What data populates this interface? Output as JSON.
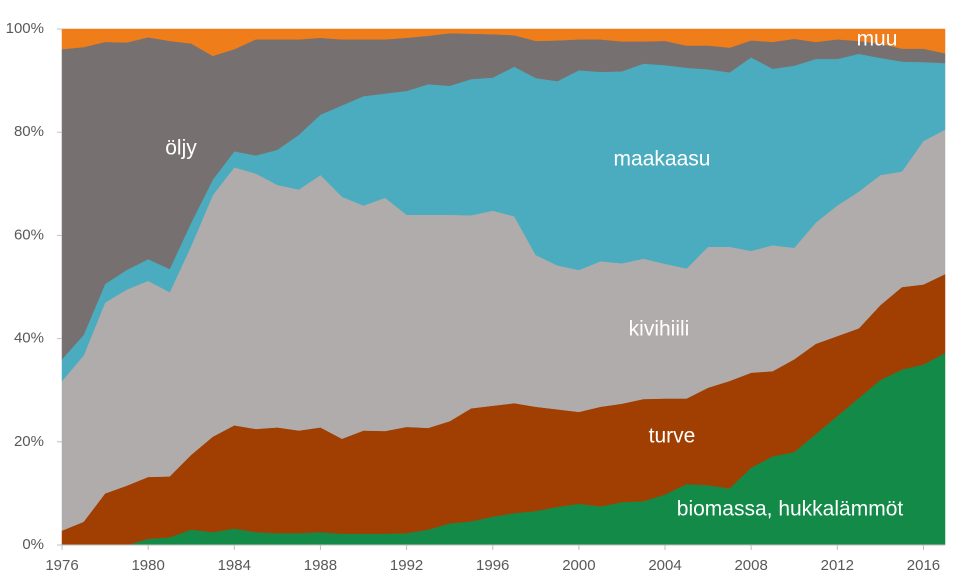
{
  "chart_data": {
    "type": "stacked_area",
    "x": [
      1976,
      1977,
      1978,
      1979,
      1980,
      1981,
      1982,
      1983,
      1984,
      1985,
      1986,
      1987,
      1988,
      1989,
      1990,
      1991,
      1992,
      1993,
      1994,
      1995,
      1996,
      1997,
      1998,
      1999,
      2000,
      2001,
      2002,
      2003,
      2004,
      2005,
      2006,
      2007,
      2008,
      2009,
      2010,
      2011,
      2012,
      2013,
      2014,
      2015,
      2016,
      2017
    ],
    "xlim": [
      1976,
      2017
    ],
    "xticks": [
      1976,
      1980,
      1984,
      1988,
      1992,
      1996,
      2000,
      2004,
      2008,
      2012,
      2016
    ],
    "ylim": [
      0,
      100
    ],
    "yticks": [
      {
        "value": 0,
        "label": "0%"
      },
      {
        "value": 20,
        "label": "20%"
      },
      {
        "value": 40,
        "label": "40%"
      },
      {
        "value": 60,
        "label": "60%"
      },
      {
        "value": 80,
        "label": "80%"
      },
      {
        "value": 100,
        "label": "100%"
      }
    ],
    "grid": false,
    "series": [
      {
        "name": "biomassa, hukkalämmöt",
        "color": "#138a47",
        "values": [
          0,
          0,
          0,
          0,
          1.2,
          1.5,
          3,
          2.5,
          3.2,
          2.5,
          2.3,
          2.3,
          2.5,
          2.2,
          2.2,
          2.2,
          2.3,
          3,
          4.2,
          4.6,
          5.5,
          6.2,
          6.6,
          7.4,
          8,
          7.5,
          8.3,
          8.5,
          9.8,
          11.8,
          11.6,
          11,
          15,
          17.2,
          18,
          21.5,
          25,
          28.5,
          32,
          34,
          35,
          37.2
        ]
      },
      {
        "name": "turve",
        "color": "#a13f02",
        "values": [
          2.8,
          4.5,
          10,
          11.5,
          12,
          11.8,
          14.5,
          18.5,
          20,
          20,
          20.5,
          19.9,
          20.3,
          18.4,
          20,
          19.9,
          20.6,
          19.7,
          19.8,
          21.9,
          21.5,
          21.3,
          20.2,
          18.9,
          17.8,
          19.3,
          19.1,
          19.8,
          18.6,
          16.6,
          18.9,
          20.8,
          18.4,
          16.5,
          18,
          17.5,
          15.5,
          13.5,
          14.5,
          16,
          15.5,
          15.3
        ]
      },
      {
        "name": "kivihiili",
        "color": "#b0acab",
        "values": [
          29,
          32.2,
          37,
          38,
          38,
          35.7,
          40.5,
          46.8,
          50,
          49.5,
          47,
          46.7,
          48.9,
          46.9,
          43.6,
          45.2,
          41.1,
          41.3,
          40,
          37.4,
          37.8,
          36.2,
          29.4,
          27.9,
          27.5,
          28.2,
          27.2,
          27.2,
          26.1,
          25.2,
          27.3,
          26,
          23.6,
          24.4,
          21.6,
          23.5,
          25.3,
          26.5,
          25.2,
          22.4,
          27.8,
          28
        ]
      },
      {
        "name": "maakaasu",
        "color": "#4bacbf",
        "values": [
          4.2,
          4,
          3.6,
          3.8,
          4.2,
          4.5,
          4.5,
          3,
          3.1,
          3.5,
          6.8,
          10.6,
          11.7,
          17.7,
          21.2,
          20.2,
          24,
          25.3,
          25,
          26.4,
          25.8,
          29,
          34.3,
          35.7,
          38.7,
          36.7,
          37.2,
          37.8,
          38.5,
          38.9,
          34.4,
          33.8,
          37.5,
          34.2,
          35.3,
          31.7,
          28.4,
          26.7,
          22.7,
          21.3,
          15.3,
          12.9
        ]
      },
      {
        "name": "öljy",
        "color": "#767170",
        "values": [
          60.1,
          55.8,
          46.9,
          44.1,
          43,
          44.2,
          34.7,
          24,
          19.8,
          22.5,
          21.4,
          18.5,
          14.9,
          12.8,
          11,
          10.5,
          10.3,
          9.4,
          10.2,
          8.8,
          8.4,
          6.1,
          7.2,
          7.9,
          6,
          6.3,
          5.8,
          4.3,
          4.7,
          4.3,
          4.6,
          4.8,
          3.3,
          5.2,
          5.2,
          3.3,
          3.8,
          2.5,
          2.8,
          2.5,
          2.6,
          1.9
        ]
      },
      {
        "name": "muu",
        "color": "#ee7d1a",
        "values": [
          3.9,
          3.5,
          2.5,
          2.6,
          1.6,
          2.3,
          2.8,
          5.2,
          3.9,
          2,
          2,
          2,
          1.7,
          2,
          2,
          2,
          1.7,
          1.3,
          0.8,
          0.9,
          1,
          1.2,
          2.3,
          2.2,
          2,
          2,
          2.4,
          2.4,
          2.3,
          3.2,
          3.2,
          3.6,
          2.2,
          2.5,
          1.9,
          2.5,
          2,
          2.3,
          2.8,
          3.8,
          3.8,
          4.7
        ]
      }
    ]
  }
}
